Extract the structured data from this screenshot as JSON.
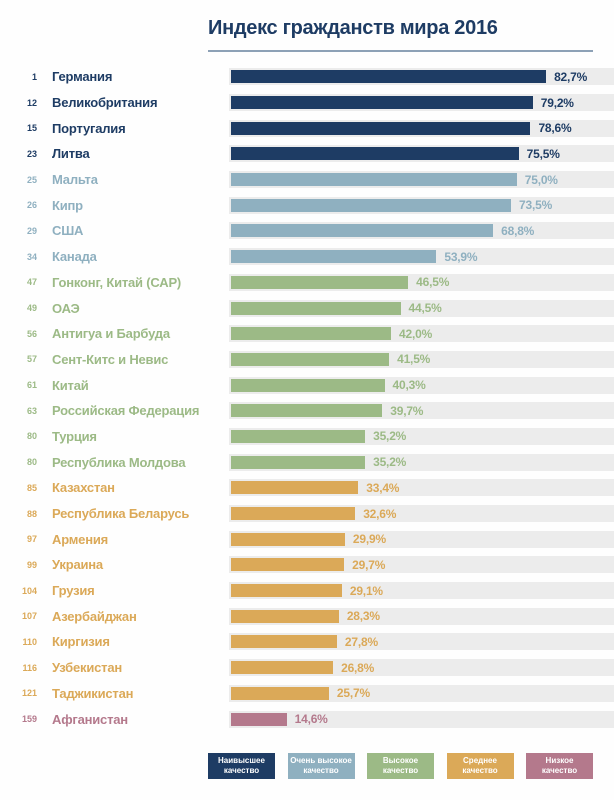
{
  "chart_data": {
    "type": "bar",
    "orientation": "horizontal",
    "title": "Индекс гражданств мира 2016",
    "value_axis": {
      "min": 0,
      "max": 100,
      "unit": "%"
    },
    "grid": false,
    "legend_position": "bottom",
    "colors": {
      "highest": "#1e3c64",
      "very_high": "#8fb0c0",
      "high": "#9cba86",
      "medium": "#dba958",
      "low": "#b4798c",
      "track": "#ececec"
    },
    "rows": [
      {
        "rank": "1",
        "country": "Германия",
        "value": 82.7,
        "label": "82,7%",
        "category": "highest"
      },
      {
        "rank": "12",
        "country": "Великобритания",
        "value": 79.2,
        "label": "79,2%",
        "category": "highest"
      },
      {
        "rank": "15",
        "country": "Португалия",
        "value": 78.6,
        "label": "78,6%",
        "category": "highest"
      },
      {
        "rank": "23",
        "country": "Литва",
        "value": 75.5,
        "label": "75,5%",
        "category": "highest"
      },
      {
        "rank": "25",
        "country": "Мальта",
        "value": 75.0,
        "label": "75,0%",
        "category": "very_high"
      },
      {
        "rank": "26",
        "country": "Кипр",
        "value": 73.5,
        "label": "73,5%",
        "category": "very_high"
      },
      {
        "rank": "29",
        "country": "США",
        "value": 68.8,
        "label": "68,8%",
        "category": "very_high"
      },
      {
        "rank": "34",
        "country": "Канада",
        "value": 53.9,
        "label": "53,9%",
        "category": "very_high"
      },
      {
        "rank": "47",
        "country": "Гонконг, Китай (САР)",
        "value": 46.5,
        "label": "46,5%",
        "category": "high"
      },
      {
        "rank": "49",
        "country": "ОАЭ",
        "value": 44.5,
        "label": "44,5%",
        "category": "high"
      },
      {
        "rank": "56",
        "country": "Антигуа и Барбуда",
        "value": 42.0,
        "label": "42,0%",
        "category": "high"
      },
      {
        "rank": "57",
        "country": "Сент-Китс и Невис",
        "value": 41.5,
        "label": "41,5%",
        "category": "high"
      },
      {
        "rank": "61",
        "country": "Китай",
        "value": 40.3,
        "label": "40,3%",
        "category": "high"
      },
      {
        "rank": "63",
        "country": "Российская Федерация",
        "value": 39.7,
        "label": "39,7%",
        "category": "high"
      },
      {
        "rank": "80",
        "country": "Турция",
        "value": 35.2,
        "label": "35,2%",
        "category": "high"
      },
      {
        "rank": "80",
        "country": "Республика Молдова",
        "value": 35.2,
        "label": "35,2%",
        "category": "high"
      },
      {
        "rank": "85",
        "country": "Казахстан",
        "value": 33.4,
        "label": "33,4%",
        "category": "medium"
      },
      {
        "rank": "88",
        "country": "Республика Беларусь",
        "value": 32.6,
        "label": "32,6%",
        "category": "medium"
      },
      {
        "rank": "97",
        "country": "Армения",
        "value": 29.9,
        "label": "29,9%",
        "category": "medium"
      },
      {
        "rank": "99",
        "country": "Украина",
        "value": 29.7,
        "label": "29,7%",
        "category": "medium"
      },
      {
        "rank": "104",
        "country": "Грузия",
        "value": 29.1,
        "label": "29,1%",
        "category": "medium"
      },
      {
        "rank": "107",
        "country": "Азербайджан",
        "value": 28.3,
        "label": "28,3%",
        "category": "medium"
      },
      {
        "rank": "110",
        "country": "Киргизия",
        "value": 27.8,
        "label": "27,8%",
        "category": "medium"
      },
      {
        "rank": "116",
        "country": "Узбекистан",
        "value": 26.8,
        "label": "26,8%",
        "category": "medium"
      },
      {
        "rank": "121",
        "country": "Таджикистан",
        "value": 25.7,
        "label": "25,7%",
        "category": "medium"
      },
      {
        "rank": "159",
        "country": "Афганистан",
        "value": 14.6,
        "label": "14,6%",
        "category": "low"
      }
    ],
    "legend": [
      {
        "label": "Наивысшее качество",
        "category": "highest"
      },
      {
        "label": "Очень высокое качество",
        "category": "very_high"
      },
      {
        "label": "Высокое качество",
        "category": "high"
      },
      {
        "label": "Среднее качество",
        "category": "medium"
      },
      {
        "label": "Низкое качество",
        "category": "low"
      }
    ]
  }
}
